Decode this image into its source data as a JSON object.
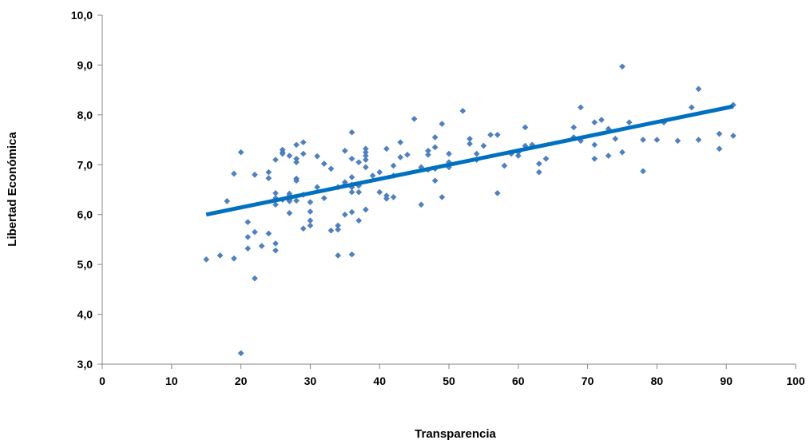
{
  "chart_data": {
    "type": "scatter",
    "xlabel": "Transparencia",
    "ylabel": "Libertad Económica",
    "xlim": [
      0,
      100
    ],
    "ylim": [
      3.0,
      10.0
    ],
    "x_ticks": [
      0,
      10,
      20,
      30,
      40,
      50,
      60,
      70,
      80,
      90,
      100
    ],
    "y_ticks": [
      3.0,
      4.0,
      5.0,
      6.0,
      7.0,
      8.0,
      9.0,
      10.0
    ],
    "x_tick_labels": [
      "0",
      "10",
      "20",
      "30",
      "40",
      "50",
      "60",
      "70",
      "80",
      "90",
      "100"
    ],
    "y_tick_labels": [
      "3,0",
      "4,0",
      "5,0",
      "6,0",
      "7,0",
      "8,0",
      "9,0",
      "10,0"
    ],
    "grid": false,
    "point_color": "#4F81BD",
    "trendline_color": "#0070C0",
    "trendline": {
      "x": [
        15,
        91
      ],
      "y": [
        6.0,
        8.17
      ]
    },
    "points": [
      [
        15,
        5.1
      ],
      [
        17,
        5.18
      ],
      [
        18,
        6.27
      ],
      [
        19,
        6.82
      ],
      [
        19,
        5.12
      ],
      [
        20,
        7.25
      ],
      [
        20,
        3.22
      ],
      [
        21,
        5.85
      ],
      [
        21,
        5.55
      ],
      [
        21,
        5.32
      ],
      [
        22,
        6.8
      ],
      [
        22,
        5.65
      ],
      [
        22,
        4.72
      ],
      [
        23,
        5.37
      ],
      [
        24,
        6.85
      ],
      [
        24,
        6.73
      ],
      [
        24,
        5.62
      ],
      [
        25,
        7.1
      ],
      [
        25,
        6.43
      ],
      [
        25,
        6.33
      ],
      [
        25,
        6.2
      ],
      [
        25,
        5.42
      ],
      [
        25,
        5.28
      ],
      [
        26,
        7.3
      ],
      [
        26,
        7.25
      ],
      [
        26,
        7.22
      ],
      [
        26,
        6.3
      ],
      [
        27,
        7.18
      ],
      [
        27,
        6.42
      ],
      [
        27,
        6.38
      ],
      [
        27,
        6.33
      ],
      [
        27,
        6.3
      ],
      [
        27,
        6.27
      ],
      [
        27,
        6.03
      ],
      [
        28,
        7.4
      ],
      [
        28,
        7.12
      ],
      [
        28,
        7.05
      ],
      [
        28,
        6.72
      ],
      [
        28,
        6.68
      ],
      [
        28,
        6.28
      ],
      [
        29,
        7.45
      ],
      [
        29,
        7.22
      ],
      [
        29,
        6.4
      ],
      [
        29,
        5.72
      ],
      [
        30,
        6.25
      ],
      [
        30,
        6.06
      ],
      [
        30,
        5.88
      ],
      [
        30,
        5.78
      ],
      [
        31,
        7.17
      ],
      [
        31,
        6.55
      ],
      [
        32,
        7.02
      ],
      [
        32,
        6.33
      ],
      [
        33,
        6.92
      ],
      [
        33,
        5.68
      ],
      [
        34,
        6.55
      ],
      [
        34,
        5.78
      ],
      [
        34,
        5.7
      ],
      [
        34,
        5.18
      ],
      [
        35,
        7.28
      ],
      [
        35,
        6.65
      ],
      [
        35,
        6.6
      ],
      [
        35,
        6.0
      ],
      [
        36,
        7.65
      ],
      [
        36,
        7.12
      ],
      [
        36,
        6.75
      ],
      [
        36,
        6.6
      ],
      [
        36,
        6.55
      ],
      [
        36,
        6.45
      ],
      [
        36,
        6.05
      ],
      [
        36,
        5.2
      ],
      [
        37,
        7.05
      ],
      [
        37,
        6.58
      ],
      [
        37,
        6.45
      ],
      [
        37,
        5.88
      ],
      [
        38,
        7.32
      ],
      [
        38,
        7.25
      ],
      [
        38,
        7.18
      ],
      [
        38,
        7.1
      ],
      [
        38,
        6.95
      ],
      [
        38,
        6.1
      ],
      [
        39,
        6.78
      ],
      [
        40,
        6.85
      ],
      [
        40,
        6.45
      ],
      [
        41,
        7.32
      ],
      [
        41,
        6.38
      ],
      [
        41,
        6.32
      ],
      [
        42,
        6.98
      ],
      [
        42,
        6.78
      ],
      [
        42,
        6.35
      ],
      [
        43,
        7.45
      ],
      [
        43,
        7.15
      ],
      [
        44,
        7.2
      ],
      [
        45,
        7.92
      ],
      [
        46,
        6.95
      ],
      [
        46,
        6.2
      ],
      [
        47,
        7.28
      ],
      [
        47,
        7.2
      ],
      [
        47,
        6.9
      ],
      [
        48,
        7.55
      ],
      [
        48,
        7.35
      ],
      [
        48,
        6.92
      ],
      [
        48,
        6.68
      ],
      [
        49,
        7.82
      ],
      [
        49,
        6.35
      ],
      [
        50,
        7.22
      ],
      [
        50,
        7.05
      ],
      [
        50,
        6.95
      ],
      [
        52,
        8.08
      ],
      [
        53,
        7.52
      ],
      [
        53,
        7.42
      ],
      [
        54,
        7.22
      ],
      [
        54,
        7.1
      ],
      [
        55,
        7.38
      ],
      [
        56,
        7.6
      ],
      [
        57,
        7.6
      ],
      [
        57,
        6.43
      ],
      [
        58,
        6.98
      ],
      [
        59,
        7.22
      ],
      [
        60,
        7.18
      ],
      [
        60,
        7.25
      ],
      [
        61,
        7.75
      ],
      [
        61,
        7.38
      ],
      [
        62,
        7.4
      ],
      [
        63,
        7.02
      ],
      [
        63,
        6.85
      ],
      [
        64,
        7.12
      ],
      [
        68,
        7.75
      ],
      [
        68,
        7.55
      ],
      [
        69,
        8.15
      ],
      [
        69,
        7.48
      ],
      [
        71,
        7.85
      ],
      [
        71,
        7.4
      ],
      [
        71,
        7.12
      ],
      [
        72,
        7.9
      ],
      [
        73,
        7.72
      ],
      [
        73,
        7.18
      ],
      [
        74,
        7.52
      ],
      [
        75,
        8.97
      ],
      [
        75,
        7.25
      ],
      [
        76,
        7.85
      ],
      [
        78,
        7.5
      ],
      [
        78,
        6.87
      ],
      [
        80,
        7.5
      ],
      [
        81,
        7.85
      ],
      [
        83,
        7.48
      ],
      [
        85,
        8.15
      ],
      [
        86,
        8.52
      ],
      [
        86,
        7.5
      ],
      [
        89,
        7.62
      ],
      [
        89,
        7.32
      ],
      [
        91,
        8.2
      ],
      [
        91,
        7.58
      ]
    ]
  }
}
